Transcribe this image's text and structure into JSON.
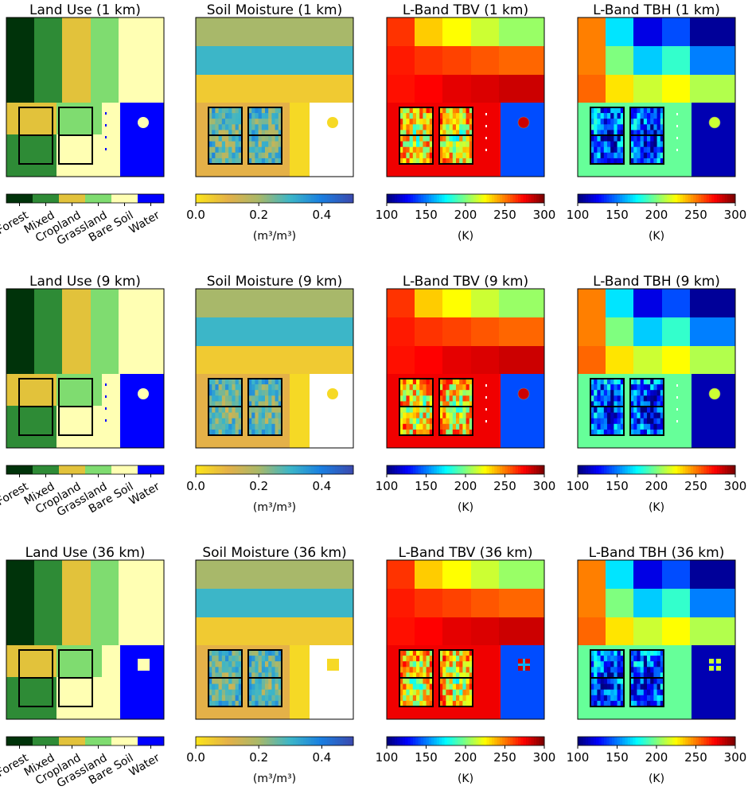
{
  "figure": {
    "row_titles": [
      [
        "Land Use (1 km)",
        "Soil Moisture (1 km)",
        "L-Band TBV (1 km)",
        "L-Band TBH (1 km)"
      ],
      [
        "Land Use (9 km)",
        "Soil Moisture (9 km)",
        "L-Band TBV (9 km)",
        "L-Band TBH (9 km)"
      ],
      [
        "Land Use (36 km)",
        "Soil Moisture (36 km)",
        "L-Band TBV (36 km)",
        "L-Band TBH (36 km)"
      ]
    ]
  },
  "colors": {
    "land_use": [
      "#00330a",
      "#2e8b36",
      "#e2c23b",
      "#7fdc70",
      "#ffffb3",
      "#0000ff"
    ],
    "soil_moisture_scale": [
      "#fbe31c",
      "#e4b148",
      "#a8b86a",
      "#3cb6c8",
      "#1a7fe0",
      "#3a4bb0"
    ],
    "jet_scale": [
      "#00007f",
      "#0000ff",
      "#007fff",
      "#00ffff",
      "#7fff7f",
      "#ffff00",
      "#ff7f00",
      "#ff0000",
      "#7f0000"
    ]
  },
  "chart_data": [
    {
      "type": "heatmap",
      "variable": "land_use",
      "title_rows": [
        "Land Use (1 km)",
        "Land Use (9 km)",
        "Land Use (36 km)"
      ],
      "legend_categories": [
        "Forest",
        "Mixed",
        "Cropland",
        "Grassland",
        "Bare Soil",
        "Water"
      ],
      "top_band_columns": [
        "Forest",
        "Mixed",
        "Cropland",
        "Grassland",
        "Bare Soil"
      ],
      "bottom_left_blocks": [
        [
          "Cropland",
          "Grassland"
        ],
        [
          "Mixed",
          "Bare Soil"
        ]
      ],
      "bottom_right": "Water",
      "lake_feature": "Bare Soil"
    },
    {
      "type": "heatmap",
      "variable": "soil_moisture",
      "title_rows": [
        "Soil Moisture (1 km)",
        "Soil Moisture (9 km)",
        "Soil Moisture (36 km)"
      ],
      "units": "(m³/m³)",
      "colorbar_range": [
        0.0,
        0.5
      ],
      "colorbar_ticks": [
        "0.0",
        "0.2",
        "0.4"
      ],
      "row_bands": [
        0.2,
        0.3,
        0.05
      ],
      "bottom_left_base": 0.1,
      "bottom_middle": 0.0,
      "bottom_right": "no data"
    },
    {
      "type": "heatmap",
      "variable": "tbv",
      "title_rows": [
        "L-Band TBV (1 km)",
        "L-Band TBV (9 km)",
        "L-Band TBV (36 km)"
      ],
      "units": "(K)",
      "colorbar_range": [
        100,
        300
      ],
      "colorbar_ticks": [
        "100",
        "150",
        "200",
        "250",
        "300"
      ],
      "grid_rows_top": [
        [
          265,
          235,
          225,
          215,
          205
        ],
        [
          270,
          265,
          262,
          258,
          255
        ],
        [
          272,
          275,
          280,
          282,
          285
        ]
      ],
      "bottom_left_base": 278,
      "bottom_right_water": 140,
      "lake_feature": 285
    },
    {
      "type": "heatmap",
      "variable": "tbh",
      "title_rows": [
        "L-Band TBH (1 km)",
        "L-Band TBH (9 km)",
        "L-Band TBH (36 km)"
      ],
      "units": "(K)",
      "colorbar_range": [
        100,
        300
      ],
      "colorbar_ticks": [
        "100",
        "150",
        "200",
        "250",
        "300"
      ],
      "grid_rows_top": [
        [
          250,
          170,
          120,
          140,
          105
        ],
        [
          250,
          200,
          165,
          185,
          150
        ],
        [
          255,
          230,
          215,
          225,
          210
        ]
      ],
      "bottom_left_base": 195,
      "bottom_right_water": 110,
      "lake_feature": 215
    }
  ]
}
